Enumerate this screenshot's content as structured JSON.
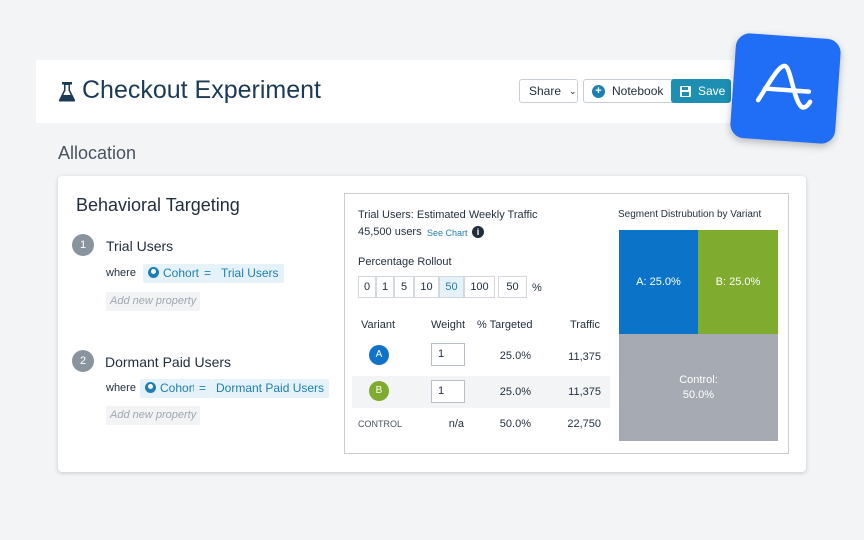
{
  "header": {
    "title": "Checkout Experiment",
    "share_label": "Share",
    "notebook_label": "Notebook",
    "save_label": "Save"
  },
  "section_title": "Allocation",
  "targeting": {
    "title": "Behavioral Targeting",
    "segments": [
      {
        "number": "1",
        "name": "Trial Users",
        "where": "where",
        "property": "Cohort",
        "operator": "=",
        "value": "Trial Users",
        "add_property": "Add new property"
      },
      {
        "number": "2",
        "name": "Dormant Paid Users",
        "where": "where",
        "property": "Cohort",
        "operator": "=",
        "value": "Dormant Paid Users",
        "add_property": "Add new property"
      }
    ]
  },
  "traffic": {
    "title": "Trial Users: Estimated Weekly Traffic",
    "users": "45,500 users",
    "see_chart": "See Chart",
    "rollout_label": "Percentage Rollout",
    "rollout_options": [
      "0",
      "1",
      "5",
      "10",
      "50",
      "100"
    ],
    "rollout_selected": "50",
    "rollout_value": "50",
    "rollout_unit": "%",
    "columns": [
      "Variant",
      "Weight",
      "% Targeted",
      "Traffic"
    ],
    "rows": [
      {
        "variant": "A",
        "weight": "1",
        "targeted": "25.0%",
        "traffic": "11,375",
        "color": "#1172c9"
      },
      {
        "variant": "B",
        "weight": "1",
        "targeted": "25.0%",
        "traffic": "11,375",
        "color": "#7fab2f"
      },
      {
        "variant": "CONTROL",
        "weight": "n/a",
        "targeted": "50.0%",
        "traffic": "22,750"
      }
    ]
  },
  "distribution": {
    "title": "Segment Distrubution by Variant",
    "a_label": "A: 25.0%",
    "b_label": "B: 25.0%",
    "control_label": "Control:",
    "control_value": "50.0%",
    "colors": {
      "a": "#0b74c9",
      "b": "#7fab2f",
      "control": "#a6aab3"
    }
  }
}
